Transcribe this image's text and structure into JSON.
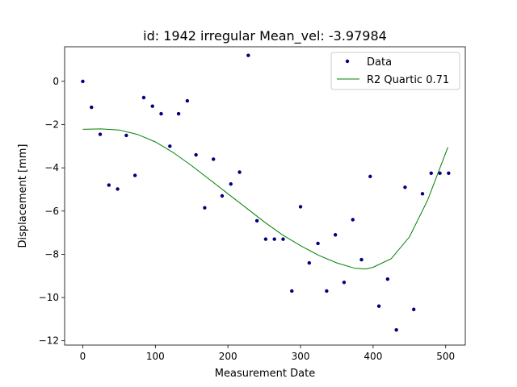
{
  "chart_data": {
    "type": "scatter",
    "title": "id: 1942 irregular Mean_vel: -3.97984",
    "xlabel": "Measurement Date",
    "ylabel": "Displacement [mm]",
    "xlim": [
      -25,
      527
    ],
    "ylim": [
      -12.2,
      1.6
    ],
    "xticks": [
      0,
      100,
      200,
      300,
      400,
      500
    ],
    "yticks": [
      0,
      -2,
      -4,
      -6,
      -8,
      -10,
      -12
    ],
    "xtick_labels": [
      "0",
      "100",
      "200",
      "300",
      "400",
      "500"
    ],
    "ytick_labels": [
      "0",
      "−2",
      "−4",
      "−6",
      "−8",
      "−10",
      "−12"
    ],
    "grid": false,
    "legend_position": "top-right",
    "series": [
      {
        "name": "Data",
        "kind": "scatter",
        "color": "#00007f",
        "x": [
          0,
          12,
          24,
          36,
          48,
          60,
          72,
          84,
          96,
          108,
          120,
          132,
          144,
          156,
          168,
          180,
          192,
          204,
          216,
          228,
          240,
          252,
          264,
          276,
          288,
          300,
          312,
          324,
          336,
          348,
          360,
          372,
          384,
          396,
          408,
          420,
          432,
          444,
          456,
          468,
          480,
          492,
          504
        ],
        "y": [
          0.0,
          -1.2,
          -2.45,
          -4.8,
          -4.98,
          -2.5,
          -4.35,
          -0.75,
          -1.15,
          -1.5,
          -3.0,
          -1.5,
          -0.9,
          -3.4,
          -5.85,
          -3.6,
          -5.3,
          -4.75,
          -4.2,
          1.2,
          -6.45,
          -7.3,
          -7.3,
          -7.3,
          -9.7,
          -5.8,
          -8.4,
          -7.5,
          -9.7,
          -7.1,
          -9.3,
          -6.4,
          -8.25,
          -4.4,
          -10.4,
          -9.15,
          -11.5,
          -4.9,
          -10.55,
          -5.2,
          -4.25,
          -4.25,
          -4.25
        ]
      },
      {
        "name": "R2 Quartic 0.71",
        "kind": "line",
        "color": "#008000",
        "x": [
          0,
          25,
          50,
          75,
          100,
          125,
          150,
          175,
          200,
          225,
          250,
          275,
          300,
          325,
          350,
          375,
          390,
          400,
          425,
          450,
          475,
          503
        ],
        "y": [
          -2.22,
          -2.2,
          -2.25,
          -2.45,
          -2.8,
          -3.3,
          -3.9,
          -4.55,
          -5.2,
          -5.85,
          -6.5,
          -7.1,
          -7.6,
          -8.05,
          -8.4,
          -8.65,
          -8.68,
          -8.6,
          -8.2,
          -7.2,
          -5.5,
          -3.05
        ]
      }
    ]
  }
}
